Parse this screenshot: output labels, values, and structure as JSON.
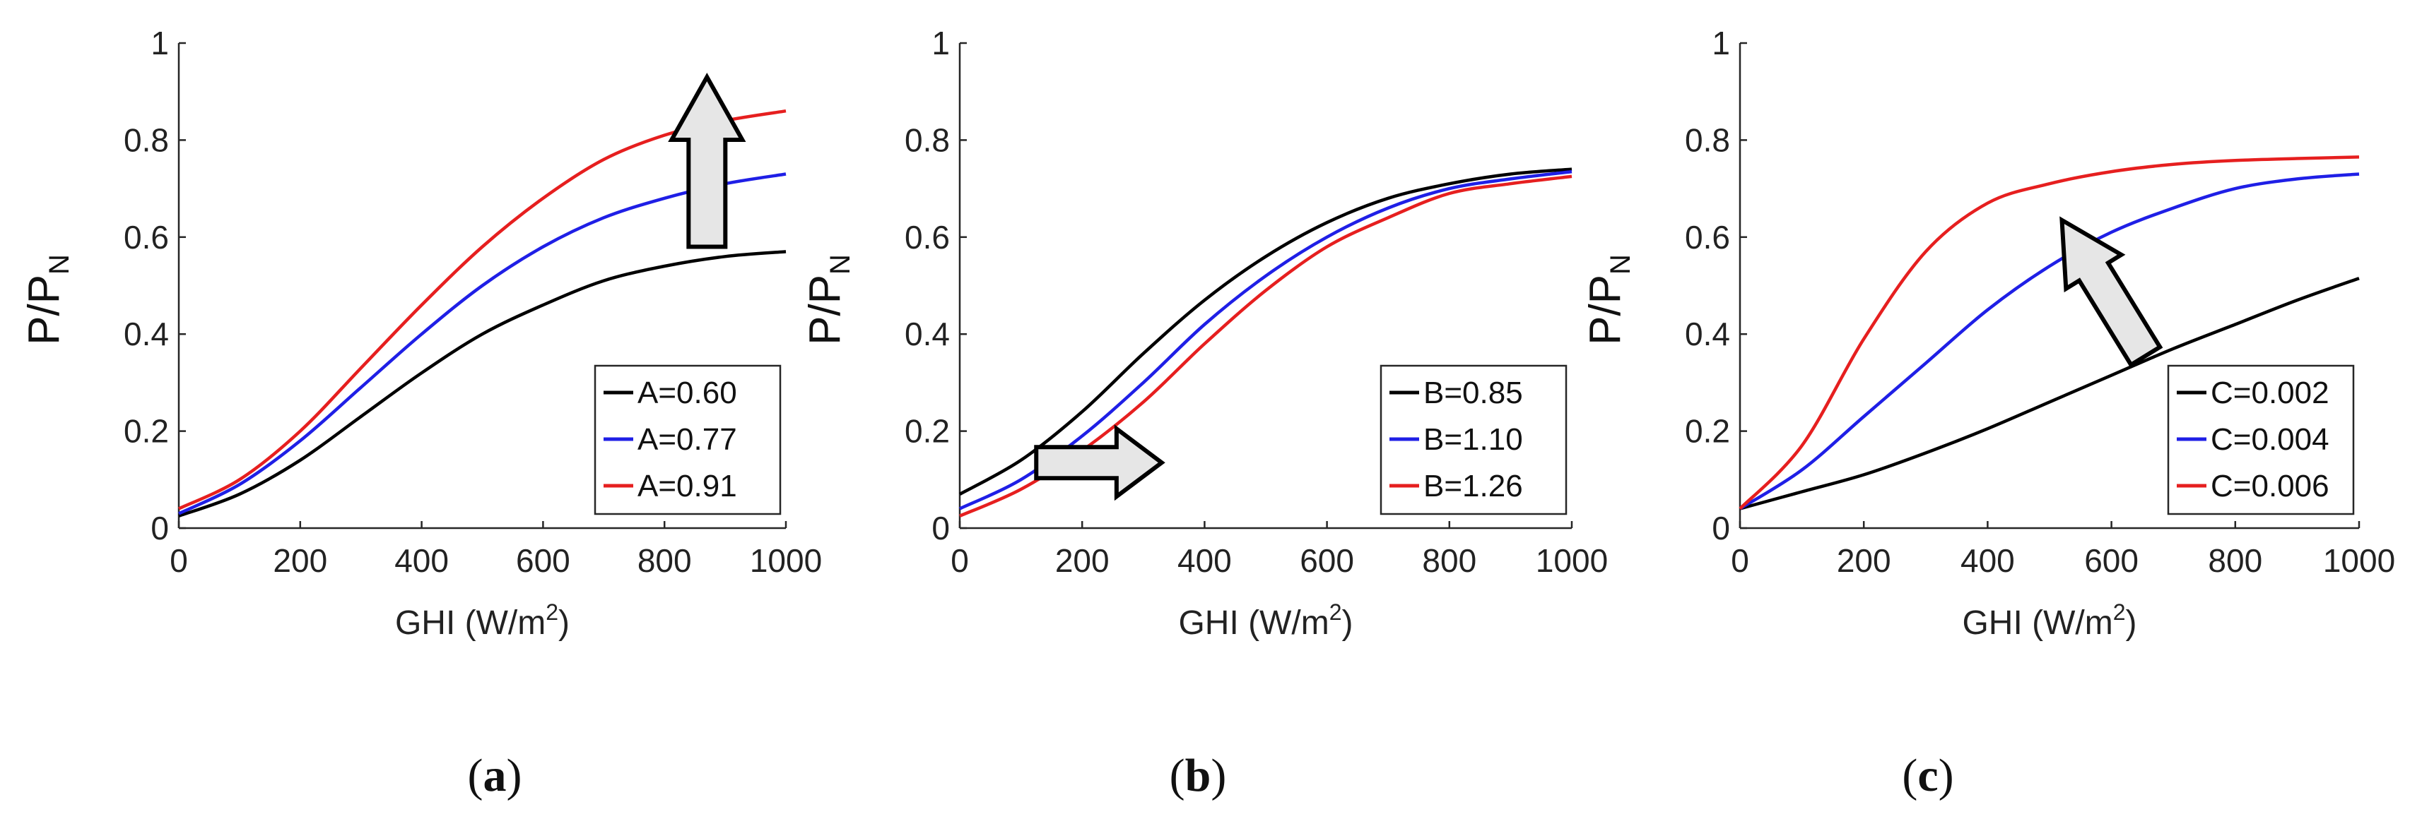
{
  "figure": {
    "panels": [
      "a",
      "b",
      "c"
    ]
  },
  "chart_data": [
    {
      "type": "line",
      "panel": "a",
      "caption_open": "(",
      "caption_letter": "a",
      "caption_close": ")",
      "xlabel_main": "GHI (W/m",
      "xlabel_sup": "2",
      "xlabel_close": ")",
      "ylabel_main": "P/P",
      "ylabel_sub": "N",
      "xlim": [
        0,
        1000
      ],
      "ylim": [
        0,
        1
      ],
      "xticks": [
        0,
        200,
        400,
        600,
        800,
        1000
      ],
      "yticks": [
        0,
        0.2,
        0.4,
        0.6,
        0.8,
        1
      ],
      "ytick_labels": [
        "0",
        "0.2",
        "0.4",
        "0.6",
        "0.8",
        "1"
      ],
      "xtick_labels": [
        "0",
        "200",
        "400",
        "600",
        "800",
        "1000"
      ],
      "legend_position": "bottom-right",
      "arrow": {
        "direction": "up",
        "x_data": 870,
        "y_from": 0.58,
        "y_to": 0.93
      },
      "x": [
        0,
        100,
        200,
        300,
        400,
        500,
        600,
        700,
        800,
        900,
        1000
      ],
      "series": [
        {
          "name": "A=0.60",
          "color": "#000000",
          "values": [
            0.025,
            0.07,
            0.14,
            0.23,
            0.32,
            0.4,
            0.46,
            0.51,
            0.54,
            0.56,
            0.57
          ]
        },
        {
          "name": "A=0.77",
          "color": "#1f1fe6",
          "values": [
            0.03,
            0.09,
            0.18,
            0.29,
            0.4,
            0.5,
            0.58,
            0.64,
            0.68,
            0.71,
            0.73
          ]
        },
        {
          "name": "A=0.91",
          "color": "#e61f1f",
          "values": [
            0.04,
            0.1,
            0.2,
            0.33,
            0.46,
            0.58,
            0.68,
            0.76,
            0.81,
            0.84,
            0.86
          ]
        }
      ]
    },
    {
      "type": "line",
      "panel": "b",
      "caption_open": "(",
      "caption_letter": "b",
      "caption_close": ")",
      "xlabel_main": "GHI (W/m",
      "xlabel_sup": "2",
      "xlabel_close": ")",
      "ylabel_main": "P/P",
      "ylabel_sub": "N",
      "xlim": [
        0,
        1000
      ],
      "ylim": [
        0,
        1
      ],
      "xticks": [
        0,
        200,
        400,
        600,
        800,
        1000
      ],
      "yticks": [
        0,
        0.2,
        0.4,
        0.6,
        0.8,
        1
      ],
      "ytick_labels": [
        "0",
        "0.2",
        "0.4",
        "0.6",
        "0.8",
        "1"
      ],
      "xtick_labels": [
        "0",
        "200",
        "400",
        "600",
        "800",
        "1000"
      ],
      "legend_position": "bottom-right",
      "arrow": {
        "direction": "right",
        "y_data": 0.135,
        "x_from": 125,
        "x_to": 330
      },
      "x": [
        0,
        100,
        200,
        300,
        400,
        500,
        600,
        700,
        800,
        900,
        1000
      ],
      "series": [
        {
          "name": "B=0.85",
          "color": "#000000",
          "values": [
            0.07,
            0.14,
            0.24,
            0.36,
            0.47,
            0.56,
            0.63,
            0.68,
            0.71,
            0.73,
            0.74
          ]
        },
        {
          "name": "B=1.10",
          "color": "#1f1fe6",
          "values": [
            0.04,
            0.1,
            0.19,
            0.3,
            0.42,
            0.52,
            0.6,
            0.66,
            0.7,
            0.72,
            0.735
          ]
        },
        {
          "name": "B=1.26",
          "color": "#e61f1f",
          "values": [
            0.025,
            0.08,
            0.16,
            0.26,
            0.38,
            0.49,
            0.58,
            0.64,
            0.69,
            0.71,
            0.725
          ]
        }
      ]
    },
    {
      "type": "line",
      "panel": "c",
      "caption_open": "(",
      "caption_letter": "c",
      "caption_close": ")",
      "xlabel_main": "GHI (W/m",
      "xlabel_sup": "2",
      "xlabel_close": ")",
      "ylabel_main": "P/P",
      "ylabel_sub": "N",
      "xlim": [
        0,
        1000
      ],
      "ylim": [
        0,
        1
      ],
      "xticks": [
        0,
        200,
        400,
        600,
        800,
        1000
      ],
      "yticks": [
        0,
        0.2,
        0.4,
        0.6,
        0.8,
        1
      ],
      "ytick_labels": [
        "0",
        "0.2",
        "0.4",
        "0.6",
        "0.8",
        "1"
      ],
      "xtick_labels": [
        "0",
        "200",
        "400",
        "600",
        "800",
        "1000"
      ],
      "legend_position": "bottom-right",
      "arrow": {
        "direction": "up-left",
        "x_from": 655,
        "y_from": 0.355,
        "x_to": 520,
        "y_to": 0.635
      },
      "x": [
        0,
        100,
        200,
        300,
        400,
        500,
        600,
        700,
        800,
        900,
        1000
      ],
      "series": [
        {
          "name": "C=0.002",
          "color": "#000000",
          "values": [
            0.04,
            0.075,
            0.11,
            0.155,
            0.205,
            0.26,
            0.315,
            0.37,
            0.42,
            0.47,
            0.515
          ]
        },
        {
          "name": "C=0.004",
          "color": "#1f1fe6",
          "values": [
            0.04,
            0.12,
            0.23,
            0.34,
            0.45,
            0.54,
            0.61,
            0.66,
            0.7,
            0.72,
            0.73
          ]
        },
        {
          "name": "C=0.006",
          "color": "#e61f1f",
          "values": [
            0.04,
            0.17,
            0.39,
            0.57,
            0.67,
            0.71,
            0.735,
            0.75,
            0.758,
            0.762,
            0.765
          ]
        }
      ]
    }
  ]
}
